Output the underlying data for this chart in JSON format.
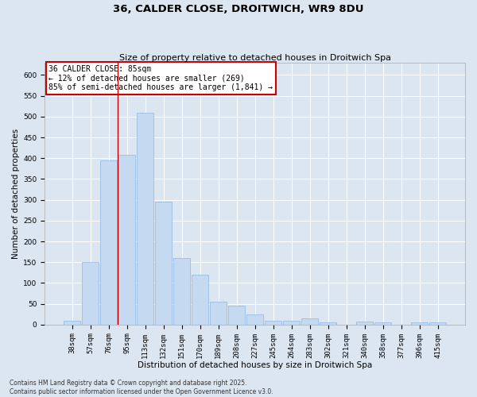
{
  "title1": "36, CALDER CLOSE, DROITWICH, WR9 8DU",
  "title2": "Size of property relative to detached houses in Droitwich Spa",
  "xlabel": "Distribution of detached houses by size in Droitwich Spa",
  "ylabel": "Number of detached properties",
  "categories": [
    "38sqm",
    "57sqm",
    "76sqm",
    "95sqm",
    "113sqm",
    "132sqm",
    "151sqm",
    "170sqm",
    "189sqm",
    "208sqm",
    "227sqm",
    "245sqm",
    "264sqm",
    "283sqm",
    "302sqm",
    "321sqm",
    "340sqm",
    "358sqm",
    "377sqm",
    "396sqm",
    "415sqm"
  ],
  "values": [
    10,
    150,
    395,
    408,
    510,
    295,
    160,
    120,
    55,
    45,
    25,
    10,
    10,
    15,
    5,
    0,
    8,
    5,
    0,
    5,
    5
  ],
  "bar_color": "#c5d9f1",
  "bar_edge_color": "#8db4e2",
  "background_color": "#dce6f1",
  "grid_color": "#ffffff",
  "annotation_text": "36 CALDER CLOSE: 85sqm\n← 12% of detached houses are smaller (269)\n85% of semi-detached houses are larger (1,841) →",
  "annotation_box_color": "#ffffff",
  "annotation_box_edge": "#cc0000",
  "red_line_x": 2.5,
  "ylim": [
    0,
    630
  ],
  "yticks": [
    0,
    50,
    100,
    150,
    200,
    250,
    300,
    350,
    400,
    450,
    500,
    550,
    600
  ],
  "footer": "Contains HM Land Registry data © Crown copyright and database right 2025.\nContains public sector information licensed under the Open Government Licence v3.0.",
  "title_fontsize": 9.5,
  "subtitle_fontsize": 8,
  "axis_label_fontsize": 7.5,
  "tick_fontsize": 6.5,
  "annotation_fontsize": 7,
  "footer_fontsize": 5.5
}
